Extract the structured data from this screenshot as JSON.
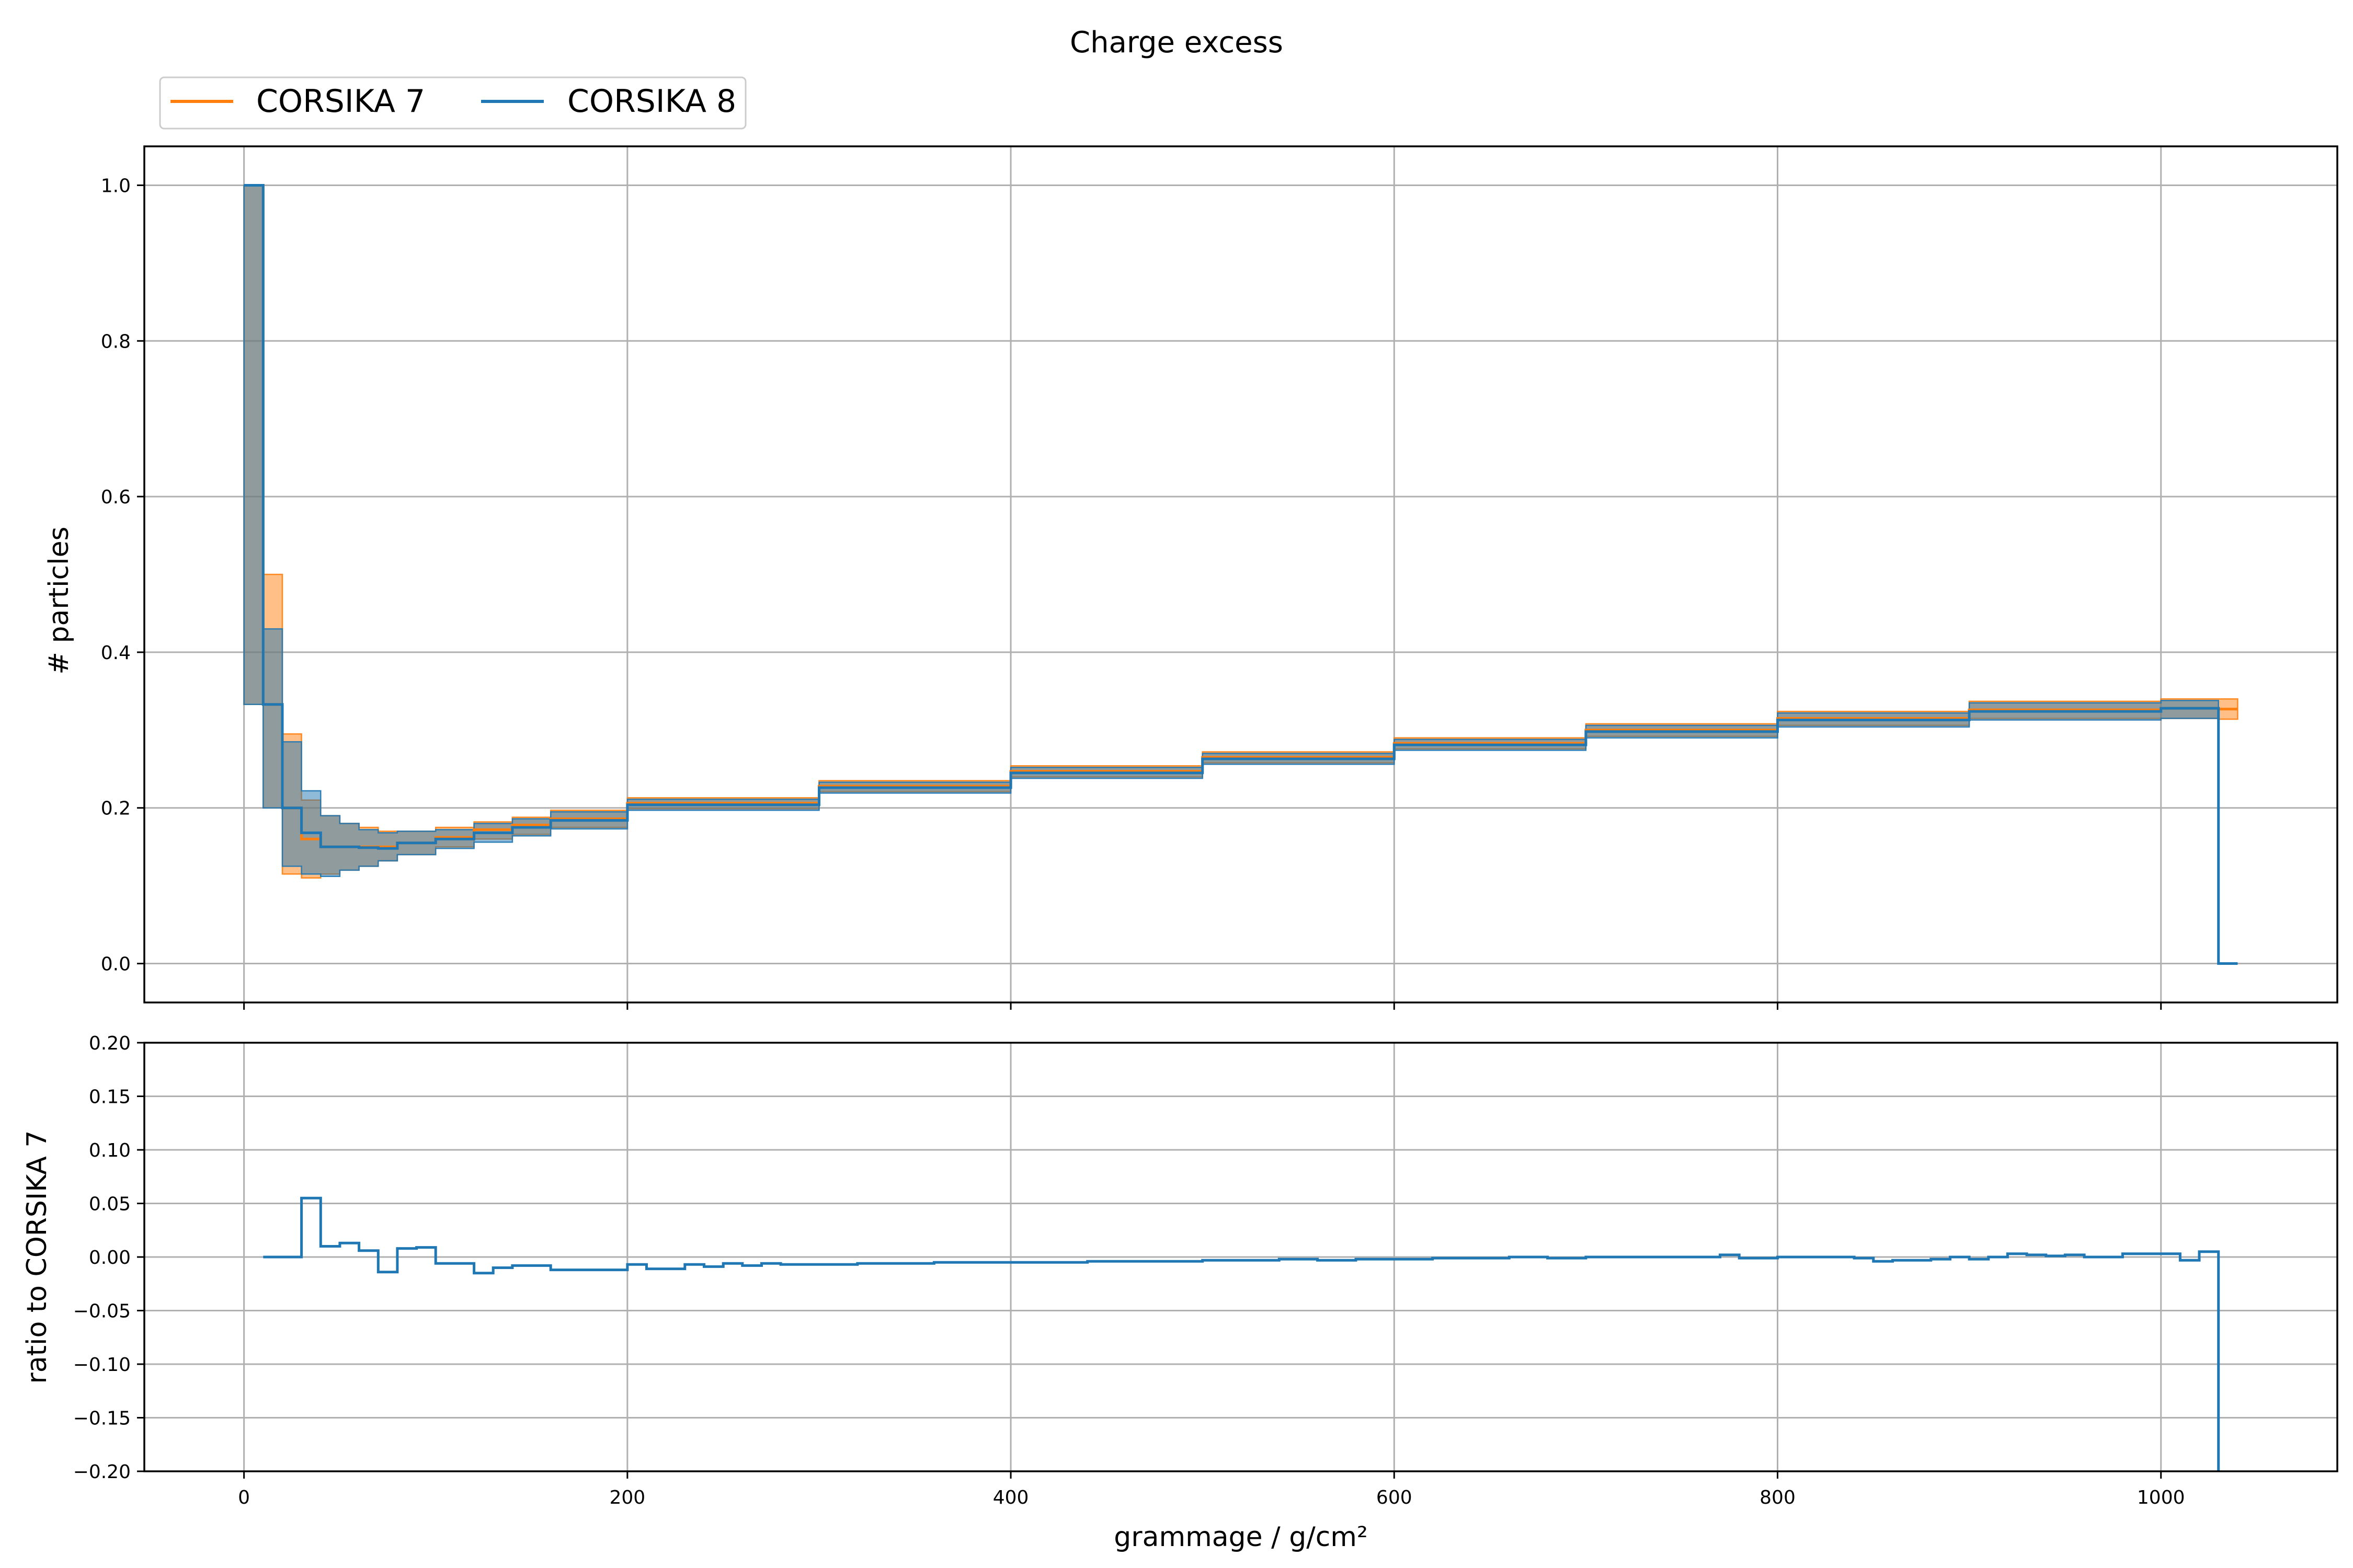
{
  "chart_data": [
    {
      "type": "line",
      "subtype": "step-histogram-with-uncertainty-bands",
      "title": "Charge excess",
      "xlabel": "",
      "ylabel": "# particles",
      "xlim": [
        -52,
        1092
      ],
      "ylim": [
        -0.05,
        1.05
      ],
      "xticks": [
        0,
        200,
        400,
        600,
        800,
        1000
      ],
      "yticks": [
        0.0,
        0.2,
        0.4,
        0.6,
        0.8,
        1.0
      ],
      "ytick_labels": [
        "0.0",
        "0.2",
        "0.4",
        "0.6",
        "0.8",
        "1.0"
      ],
      "grid": true,
      "legend": {
        "placement": "top-left, above axes",
        "entries": [
          {
            "label": "CORSIKA 7",
            "color": "#ff7f0e"
          },
          {
            "label": "CORSIKA 8",
            "color": "#1f77b4"
          }
        ]
      },
      "series": [
        {
          "name": "CORSIKA 7",
          "color": "#ff7f0e",
          "bin_edges": [
            0,
            10,
            20,
            30,
            40,
            50,
            60,
            70,
            80,
            100,
            120,
            140,
            160,
            200,
            300,
            400,
            500,
            600,
            700,
            800,
            900,
            1000,
            1030,
            1040
          ],
          "values": [
            1.0,
            0.333,
            0.2,
            0.16,
            0.15,
            0.15,
            0.15,
            0.15,
            0.155,
            0.162,
            0.172,
            0.178,
            0.186,
            0.206,
            0.228,
            0.247,
            0.265,
            0.283,
            0.3,
            0.315,
            0.326,
            0.328,
            0.327
          ],
          "band_low": [
            0.333,
            0.2,
            0.115,
            0.11,
            0.115,
            0.12,
            0.125,
            0.132,
            0.14,
            0.15,
            0.16,
            0.166,
            0.175,
            0.199,
            0.221,
            0.24,
            0.258,
            0.276,
            0.292,
            0.306,
            0.315,
            0.315,
            0.314
          ],
          "band_high": [
            1.0,
            0.5,
            0.295,
            0.21,
            0.19,
            0.18,
            0.175,
            0.17,
            0.17,
            0.175,
            0.182,
            0.188,
            0.197,
            0.213,
            0.235,
            0.254,
            0.272,
            0.29,
            0.308,
            0.324,
            0.337,
            0.34,
            0.34
          ]
        },
        {
          "name": "CORSIKA 8",
          "color": "#1f77b4",
          "bin_edges": [
            0,
            10,
            20,
            30,
            40,
            50,
            60,
            70,
            80,
            100,
            120,
            140,
            160,
            200,
            300,
            400,
            500,
            600,
            700,
            800,
            900,
            1000,
            1030,
            1040
          ],
          "values": [
            1.0,
            0.333,
            0.2,
            0.168,
            0.15,
            0.15,
            0.149,
            0.148,
            0.155,
            0.16,
            0.168,
            0.175,
            0.184,
            0.204,
            0.226,
            0.245,
            0.263,
            0.281,
            0.298,
            0.313,
            0.324,
            0.328,
            0.0
          ],
          "band_low": [
            0.333,
            0.2,
            0.125,
            0.115,
            0.112,
            0.12,
            0.125,
            0.132,
            0.14,
            0.148,
            0.156,
            0.164,
            0.173,
            0.197,
            0.219,
            0.238,
            0.256,
            0.274,
            0.29,
            0.304,
            0.313,
            0.315,
            0.0
          ],
          "band_high": [
            1.0,
            0.43,
            0.285,
            0.222,
            0.19,
            0.18,
            0.172,
            0.168,
            0.17,
            0.172,
            0.18,
            0.186,
            0.195,
            0.211,
            0.233,
            0.252,
            0.27,
            0.288,
            0.306,
            0.322,
            0.335,
            0.338,
            0.0
          ]
        }
      ]
    },
    {
      "type": "line",
      "subtype": "step",
      "title": "",
      "xlabel": "grammage / g/cm²",
      "ylabel": "ratio to CORSIKA 7",
      "xlim": [
        -52,
        1092
      ],
      "ylim": [
        -0.2,
        0.2
      ],
      "xticks": [
        0,
        200,
        400,
        600,
        800,
        1000
      ],
      "yticks": [
        -0.2,
        -0.15,
        -0.1,
        -0.05,
        0.0,
        0.05,
        0.1,
        0.15,
        0.2
      ],
      "ytick_labels": [
        "−0.20",
        "−0.15",
        "−0.10",
        "−0.05",
        "0.00",
        "0.05",
        "0.10",
        "0.15",
        "0.20"
      ],
      "grid": true,
      "series": [
        {
          "name": "",
          "color": "#1f77b4",
          "bin_edges": [
            10,
            20,
            30,
            40,
            50,
            60,
            70,
            80,
            90,
            100,
            110,
            120,
            130,
            140,
            160,
            200,
            210,
            230,
            240,
            250,
            260,
            270,
            280,
            300,
            320,
            340,
            360,
            380,
            400,
            420,
            440,
            460,
            480,
            500,
            520,
            540,
            560,
            580,
            600,
            620,
            640,
            660,
            680,
            700,
            720,
            740,
            760,
            770,
            780,
            800,
            820,
            840,
            850,
            860,
            880,
            890,
            900,
            910,
            920,
            930,
            940,
            950,
            960,
            970,
            980,
            1000,
            1010,
            1020,
            1030
          ],
          "values": [
            0.0,
            0.0,
            0.055,
            0.01,
            0.013,
            0.006,
            -0.014,
            0.008,
            0.009,
            -0.006,
            -0.006,
            -0.015,
            -0.01,
            -0.008,
            -0.012,
            -0.007,
            -0.011,
            -0.007,
            -0.009,
            -0.006,
            -0.008,
            -0.006,
            -0.007,
            -0.007,
            -0.006,
            -0.006,
            -0.005,
            -0.005,
            -0.005,
            -0.005,
            -0.004,
            -0.004,
            -0.004,
            -0.003,
            -0.003,
            -0.002,
            -0.003,
            -0.002,
            -0.002,
            -0.001,
            -0.001,
            0.0,
            -0.001,
            0.0,
            0.0,
            0.0,
            0.0,
            0.002,
            -0.001,
            0.0,
            0.0,
            -0.001,
            -0.004,
            -0.003,
            -0.002,
            0.0,
            -0.002,
            0.0,
            0.003,
            0.002,
            0.001,
            0.002,
            0.0,
            0.0,
            0.003,
            0.003,
            -0.003,
            0.005
          ],
          "tail_drop_to": -0.2
        }
      ]
    }
  ]
}
